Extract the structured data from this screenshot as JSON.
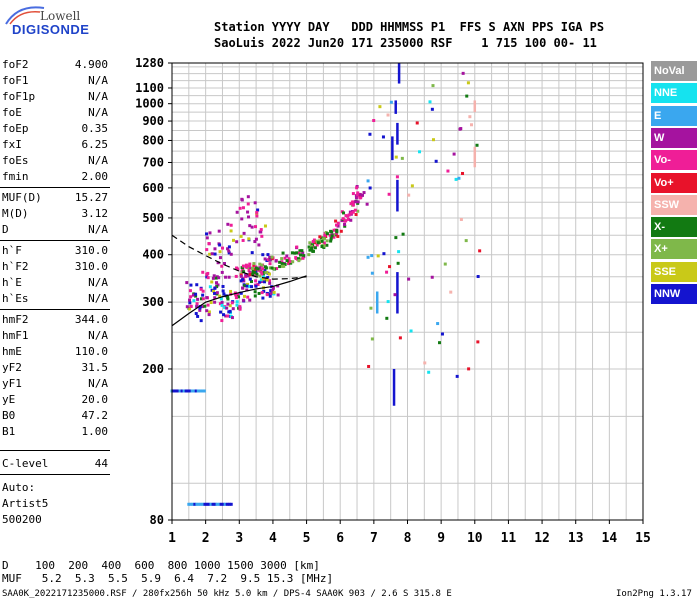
{
  "logo": {
    "top": "Lowell",
    "bottom": "DIGISONDE"
  },
  "header": {
    "row1": "Station YYYY DAY   DDD HHMMSS P1  FFS S AXN PPS IGA PS",
    "row2": "SaoLuis 2022 Jun20 171 235000 RSF    1 715 100 00- 11"
  },
  "params": [
    {
      "k": "foF2",
      "v": "4.900"
    },
    {
      "k": "foF1",
      "v": "N/A"
    },
    {
      "k": "foF1p",
      "v": "N/A"
    },
    {
      "k": "foE",
      "v": "N/A"
    },
    {
      "k": "foEp",
      "v": "0.35"
    },
    {
      "k": "fxI",
      "v": "6.25"
    },
    {
      "k": "foEs",
      "v": "N/A"
    },
    {
      "k": "fmin",
      "v": "2.00"
    },
    {
      "k": "MUF(D)",
      "v": "15.27"
    },
    {
      "k": "M(D)",
      "v": "3.12"
    },
    {
      "k": "D",
      "v": "N/A"
    },
    {
      "k": "h`F",
      "v": "310.0"
    },
    {
      "k": "h`F2",
      "v": "310.0"
    },
    {
      "k": "h`E",
      "v": "N/A"
    },
    {
      "k": "h`Es",
      "v": "N/A"
    },
    {
      "k": "hmF2",
      "v": "344.0"
    },
    {
      "k": "hmF1",
      "v": "N/A"
    },
    {
      "k": "hmE",
      "v": "110.0"
    },
    {
      "k": "yF2",
      "v": "31.5"
    },
    {
      "k": "yF1",
      "v": "N/A"
    },
    {
      "k": "yE",
      "v": "20.0"
    },
    {
      "k": "B0",
      "v": "47.2"
    },
    {
      "k": "B1",
      "v": "1.00"
    },
    {
      "k": "C-level",
      "v": "44"
    }
  ],
  "auto": {
    "line1": "Auto:",
    "line2": "Artist5",
    "line3": "500200"
  },
  "legend": [
    {
      "label": "NoVal",
      "color": "#9a9a9a"
    },
    {
      "label": "NNE",
      "color": "#15e3ef"
    },
    {
      "label": "E",
      "color": "#3aa7ef"
    },
    {
      "label": "W",
      "color": "#a5139f"
    },
    {
      "label": "Vo-",
      "color": "#ef1e97"
    },
    {
      "label": "Vo+",
      "color": "#e8122a"
    },
    {
      "label": "SSW",
      "color": "#f5b2ad"
    },
    {
      "label": "X-",
      "color": "#127a12"
    },
    {
      "label": "X+",
      "color": "#7fb84a"
    },
    {
      "label": "SSE",
      "color": "#c9c918"
    },
    {
      "label": "NNW",
      "color": "#1414cf"
    }
  ],
  "bottom": {
    "row1": "D    100  200  400  600  800 1000 1500 3000 [km]",
    "row2": "MUF   5.2  5.3  5.5  5.9  6.4  7.2  9.5 15.3 [MHz]"
  },
  "footer": {
    "left": "SAA0K_2022171235000.RSF / 280fx256h 50 kHz 5.0 km / DPS-4 SAA0K 903 / 2.6 S 315.8 E",
    "right": "Ion2Png 1.3.17"
  },
  "chart_data": {
    "type": "scatter",
    "title": "",
    "xlabel": "",
    "ylabel": "",
    "xlim": [
      1,
      15
    ],
    "ylim": [
      80,
      1280
    ],
    "y_scale": "log",
    "x_ticks": [
      1,
      2,
      3,
      4,
      5,
      6,
      7,
      8,
      9,
      10,
      11,
      12,
      13,
      14,
      15
    ],
    "y_ticks": [
      80,
      200,
      300,
      400,
      500,
      600,
      700,
      800,
      900,
      1000,
      1100,
      1280
    ],
    "grid": true,
    "legend_position": "right",
    "o_trace": [
      [
        3.0,
        360
      ],
      [
        3.3,
        365
      ],
      [
        3.6,
        370
      ],
      [
        4.0,
        380
      ],
      [
        4.4,
        392
      ],
      [
        4.8,
        405
      ],
      [
        5.2,
        422
      ],
      [
        5.5,
        440
      ],
      [
        5.8,
        460
      ],
      [
        6.0,
        478
      ],
      [
        6.2,
        500
      ],
      [
        6.4,
        530
      ],
      [
        6.5,
        560
      ],
      [
        6.6,
        585
      ]
    ],
    "x_trace": [
      [
        3.5,
        360
      ],
      [
        3.9,
        368
      ],
      [
        4.3,
        380
      ],
      [
        4.7,
        395
      ],
      [
        5.1,
        412
      ],
      [
        5.4,
        428
      ],
      [
        5.7,
        448
      ]
    ],
    "f_low_cluster": [
      [
        1.6,
        310
      ],
      [
        1.8,
        290
      ],
      [
        2.0,
        300
      ],
      [
        2.2,
        330
      ],
      [
        2.4,
        320
      ],
      [
        2.6,
        290
      ],
      [
        2.8,
        300
      ],
      [
        3.0,
        315
      ],
      [
        3.2,
        330
      ],
      [
        3.4,
        340
      ],
      [
        3.6,
        335
      ],
      [
        3.8,
        330
      ],
      [
        4.0,
        340
      ]
    ],
    "spread_cluster": [
      [
        2.0,
        410
      ],
      [
        2.2,
        390
      ],
      [
        2.5,
        420
      ],
      [
        2.8,
        450
      ],
      [
        3.0,
        480
      ],
      [
        3.2,
        520
      ],
      [
        3.4,
        490
      ],
      [
        3.6,
        460
      ],
      [
        3.8,
        430
      ],
      [
        2.6,
        380
      ],
      [
        3.3,
        400
      ]
    ],
    "vertical_lines": [
      {
        "x": 7.55,
        "y": [
          710,
          820
        ],
        "color": "#1414cf"
      },
      {
        "x": 7.65,
        "y": [
          940,
          1020
        ],
        "color": "#1414cf"
      },
      {
        "x": 7.7,
        "y": [
          780,
          890
        ],
        "color": "#1414cf"
      },
      {
        "x": 7.75,
        "y": [
          1130,
          1280
        ],
        "color": "#1414cf"
      },
      {
        "x": 7.7,
        "y": [
          520,
          630
        ],
        "color": "#1414cf"
      },
      {
        "x": 7.6,
        "y": [
          160,
          200
        ],
        "color": "#1414cf"
      },
      {
        "x": 7.7,
        "y": [
          280,
          360
        ],
        "color": "#1414cf"
      },
      {
        "x": 10.0,
        "y": [
          680,
          770
        ],
        "color": "#f5b2ad"
      },
      {
        "x": 10.0,
        "y": [
          950,
          1020
        ],
        "color": "#f5b2ad"
      },
      {
        "x": 7.1,
        "y": [
          280,
          320
        ],
        "color": "#3aa7ef"
      }
    ],
    "model_curve_1": [
      [
        1.0,
        450
      ],
      [
        1.5,
        420
      ],
      [
        2.0,
        398
      ],
      [
        2.5,
        378
      ],
      [
        3.0,
        362
      ],
      [
        3.5,
        350
      ],
      [
        4.0,
        345
      ],
      [
        4.5,
        346
      ],
      [
        5.0,
        350
      ]
    ],
    "model_curve_2": [
      [
        1.0,
        260
      ],
      [
        1.5,
        280
      ],
      [
        2.0,
        300
      ],
      [
        2.5,
        310
      ],
      [
        3.0,
        318
      ],
      [
        3.5,
        325
      ],
      [
        4.0,
        330
      ],
      [
        4.5,
        340
      ],
      [
        5.0,
        352
      ]
    ],
    "low_band": {
      "x": [
        1.0,
        2.0
      ],
      "y": 175
    },
    "low_band_2": {
      "x": [
        1.5,
        2.8
      ],
      "y": 88
    }
  }
}
